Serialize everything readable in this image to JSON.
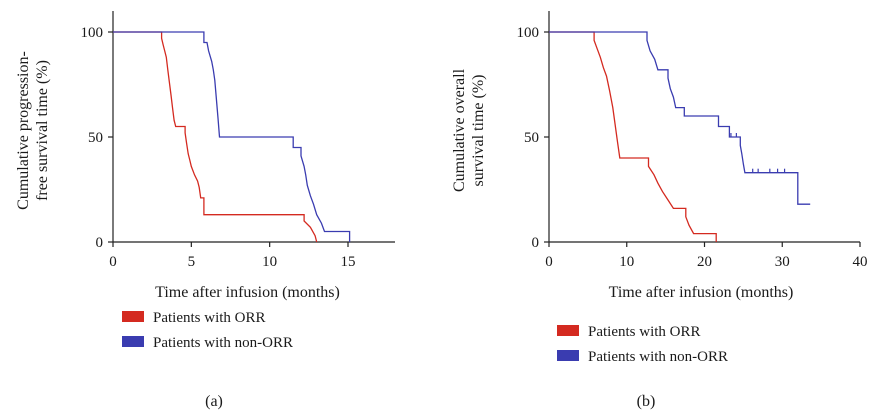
{
  "colors": {
    "orr": "#d42a20",
    "non_orr": "#3a3cb0",
    "axis": "#222222"
  },
  "chart_data": [
    {
      "type": "line",
      "step": true,
      "panel_label": "(a)",
      "xlabel": "Time after infusion (months)",
      "ylabel_lines": [
        "Cumulative progression-",
        "free survival time (%)"
      ],
      "xlim": [
        0,
        18
      ],
      "ylim": [
        0,
        110
      ],
      "xticks": [
        0,
        5,
        10,
        15
      ],
      "yticks": [
        0,
        50,
        100
      ],
      "grid": false,
      "legend": {
        "placement": "below",
        "entries": [
          "Patients with ORR",
          "Patients with non-ORR"
        ]
      },
      "series": [
        {
          "name": "Patients with ORR",
          "color_key": "orr",
          "points": [
            [
              0,
              100
            ],
            [
              3.1,
              100
            ],
            [
              3.1,
              97
            ],
            [
              3.2,
              94
            ],
            [
              3.3,
              91
            ],
            [
              3.4,
              88
            ],
            [
              3.5,
              82
            ],
            [
              3.6,
              76
            ],
            [
              3.7,
              70
            ],
            [
              3.8,
              64
            ],
            [
              3.9,
              58
            ],
            [
              4.0,
              55
            ],
            [
              4.6,
              55
            ],
            [
              4.6,
              52
            ],
            [
              4.7,
              47
            ],
            [
              4.8,
              42
            ],
            [
              4.9,
              39
            ],
            [
              5.0,
              36
            ],
            [
              5.2,
              32
            ],
            [
              5.4,
              29
            ],
            [
              5.5,
              26
            ],
            [
              5.6,
              21
            ],
            [
              5.8,
              21
            ],
            [
              5.8,
              13
            ],
            [
              12.2,
              13
            ],
            [
              12.2,
              10
            ],
            [
              12.6,
              7
            ],
            [
              12.9,
              3
            ],
            [
              13.0,
              0
            ]
          ],
          "censored": []
        },
        {
          "name": "Patients with non-ORR",
          "color_key": "non_orr",
          "points": [
            [
              0,
              100
            ],
            [
              5.8,
              100
            ],
            [
              5.8,
              95
            ],
            [
              6.0,
              95
            ],
            [
              6.1,
              91
            ],
            [
              6.3,
              86
            ],
            [
              6.4,
              82
            ],
            [
              6.5,
              77
            ],
            [
              6.6,
              68
            ],
            [
              6.7,
              59
            ],
            [
              6.8,
              50
            ],
            [
              11.5,
              50
            ],
            [
              11.5,
              45
            ],
            [
              12.0,
              45
            ],
            [
              12.0,
              41
            ],
            [
              12.2,
              36
            ],
            [
              12.3,
              32
            ],
            [
              12.4,
              27
            ],
            [
              12.6,
              22
            ],
            [
              12.8,
              18
            ],
            [
              13.0,
              13
            ],
            [
              13.3,
              9
            ],
            [
              13.5,
              5
            ],
            [
              15.1,
              5
            ],
            [
              15.1,
              0
            ]
          ],
          "censored": []
        }
      ]
    },
    {
      "type": "line",
      "step": true,
      "panel_label": "(b)",
      "xlabel": "Time after infusion (months)",
      "ylabel_lines": [
        "Cumulative overall",
        "survival time (%)"
      ],
      "xlim": [
        0,
        40
      ],
      "ylim": [
        0,
        110
      ],
      "xticks": [
        0,
        10,
        20,
        30,
        40
      ],
      "yticks": [
        0,
        50,
        100
      ],
      "grid": false,
      "legend": {
        "placement": "below",
        "entries": [
          "Patients with ORR",
          "Patients with non-ORR"
        ]
      },
      "series": [
        {
          "name": "Patients with ORR",
          "color_key": "orr",
          "points": [
            [
              0,
              100
            ],
            [
              5.8,
              100
            ],
            [
              5.8,
              96
            ],
            [
              6.2,
              92
            ],
            [
              6.6,
              88
            ],
            [
              7.0,
              83
            ],
            [
              7.4,
              79
            ],
            [
              7.8,
              72
            ],
            [
              8.2,
              64
            ],
            [
              8.5,
              56
            ],
            [
              8.8,
              48
            ],
            [
              9.1,
              40
            ],
            [
              12.8,
              40
            ],
            [
              12.8,
              36
            ],
            [
              13.5,
              32
            ],
            [
              14.0,
              28
            ],
            [
              14.6,
              24
            ],
            [
              15.3,
              20
            ],
            [
              16.0,
              16
            ],
            [
              17.6,
              16
            ],
            [
              17.6,
              12
            ],
            [
              18.0,
              8
            ],
            [
              18.6,
              4
            ],
            [
              21.5,
              4
            ],
            [
              21.5,
              0
            ]
          ],
          "censored": []
        },
        {
          "name": "Patients with non-ORR",
          "color_key": "non_orr",
          "points": [
            [
              0,
              100
            ],
            [
              12.6,
              100
            ],
            [
              12.6,
              96
            ],
            [
              13.0,
              91
            ],
            [
              13.6,
              87
            ],
            [
              14.0,
              82
            ],
            [
              15.3,
              82
            ],
            [
              15.3,
              78
            ],
            [
              15.6,
              73
            ],
            [
              16.0,
              69
            ],
            [
              16.3,
              64
            ],
            [
              17.4,
              64
            ],
            [
              17.4,
              60
            ],
            [
              21.8,
              60
            ],
            [
              21.8,
              55
            ],
            [
              23.2,
              55
            ],
            [
              23.2,
              50
            ],
            [
              24.6,
              50
            ],
            [
              24.6,
              46
            ],
            [
              24.8,
              42
            ],
            [
              25.0,
              37
            ],
            [
              25.2,
              33
            ],
            [
              32.0,
              33
            ],
            [
              32.0,
              18
            ],
            [
              33.6,
              18
            ]
          ],
          "censored": [
            [
              23.4,
              50
            ],
            [
              24.1,
              50
            ],
            [
              26.2,
              33
            ],
            [
              26.9,
              33
            ],
            [
              28.4,
              33
            ],
            [
              29.4,
              33
            ],
            [
              30.3,
              33
            ]
          ]
        }
      ]
    }
  ]
}
